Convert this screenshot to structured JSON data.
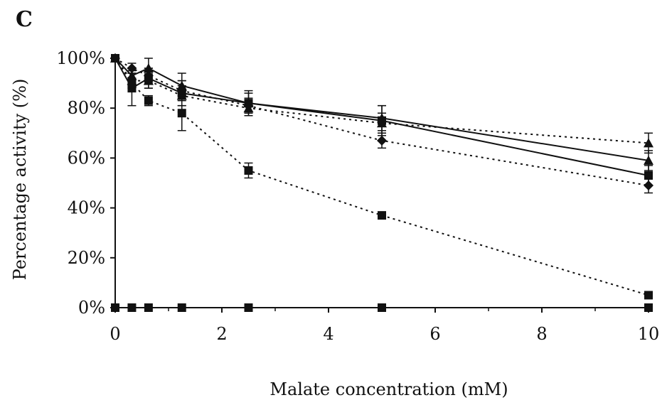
{
  "panel_label": "C",
  "chart_data": {
    "type": "line",
    "title": "",
    "xlabel": "Malate concentration (mM)",
    "ylabel": "Percentage activity (%)",
    "xlim": [
      0,
      10
    ],
    "ylim": [
      0,
      100
    ],
    "x_ticks": [
      0,
      2,
      4,
      6,
      8,
      10
    ],
    "y_ticks": [
      0,
      20,
      40,
      60,
      80,
      100
    ],
    "y_tick_labels": [
      "0%",
      "20%",
      "40%",
      "60%",
      "80%",
      "100%"
    ],
    "grid": false,
    "legend": "none",
    "series": [
      {
        "line": "solid",
        "marker": "triangle",
        "points": [
          {
            "x": 0,
            "y": 100,
            "err": 0
          },
          {
            "x": 0.3125,
            "y": 93,
            "err": 3
          },
          {
            "x": 0.625,
            "y": 96,
            "err": 4
          },
          {
            "x": 1.25,
            "y": 89,
            "err": 5
          },
          {
            "x": 2.5,
            "y": 82,
            "err": 4
          },
          {
            "x": 5,
            "y": 76,
            "err": 5
          },
          {
            "x": 10,
            "y": 59,
            "err": 4
          }
        ]
      },
      {
        "line": "solid",
        "marker": "square",
        "points": [
          {
            "x": 0,
            "y": 100,
            "err": 0
          },
          {
            "x": 0.3125,
            "y": 88,
            "err": 7
          },
          {
            "x": 0.625,
            "y": 92,
            "err": 4
          },
          {
            "x": 1.25,
            "y": 86,
            "err": 5
          },
          {
            "x": 2.5,
            "y": 82,
            "err": 5
          },
          {
            "x": 5,
            "y": 75,
            "err": 6
          },
          {
            "x": 10,
            "y": 53,
            "err": 4
          }
        ]
      },
      {
        "line": "dotted",
        "marker": "triangle",
        "points": [
          {
            "x": 0,
            "y": 100,
            "err": 0
          },
          {
            "x": 0.3125,
            "y": 91,
            "err": 3
          },
          {
            "x": 0.625,
            "y": 91,
            "err": 3
          },
          {
            "x": 1.25,
            "y": 85,
            "err": 4
          },
          {
            "x": 2.5,
            "y": 80,
            "err": 3
          },
          {
            "x": 5,
            "y": 74,
            "err": 4
          },
          {
            "x": 10,
            "y": 66,
            "err": 4
          }
        ]
      },
      {
        "line": "dotted",
        "marker": "diamond",
        "points": [
          {
            "x": 0,
            "y": 100,
            "err": 0
          },
          {
            "x": 0.3125,
            "y": 96,
            "err": 2
          },
          {
            "x": 0.625,
            "y": 93,
            "err": 3
          },
          {
            "x": 1.25,
            "y": 87,
            "err": 4
          },
          {
            "x": 2.5,
            "y": 81,
            "err": 3
          },
          {
            "x": 5,
            "y": 67,
            "err": 3
          },
          {
            "x": 10,
            "y": 49,
            "err": 3
          }
        ]
      },
      {
        "line": "dotted",
        "marker": "square",
        "points": [
          {
            "x": 0,
            "y": 100,
            "err": 0
          },
          {
            "x": 0.3125,
            "y": 90,
            "err": 2
          },
          {
            "x": 0.625,
            "y": 83,
            "err": 2
          },
          {
            "x": 1.25,
            "y": 78,
            "err": 7
          },
          {
            "x": 2.5,
            "y": 55,
            "err": 3
          },
          {
            "x": 5,
            "y": 37,
            "err": 1
          },
          {
            "x": 10,
            "y": 5,
            "err": 1
          }
        ]
      },
      {
        "line": "solid",
        "marker": "square",
        "points": [
          {
            "x": 0,
            "y": 0,
            "err": 0
          },
          {
            "x": 0.3125,
            "y": 0,
            "err": 0
          },
          {
            "x": 0.625,
            "y": 0,
            "err": 0
          },
          {
            "x": 1.25,
            "y": 0,
            "err": 0
          },
          {
            "x": 2.5,
            "y": 0,
            "err": 0
          },
          {
            "x": 5,
            "y": 0,
            "err": 0
          },
          {
            "x": 10,
            "y": 0,
            "err": 0
          }
        ]
      }
    ]
  },
  "colors": {
    "axis": "#111111",
    "series": "#111111"
  }
}
